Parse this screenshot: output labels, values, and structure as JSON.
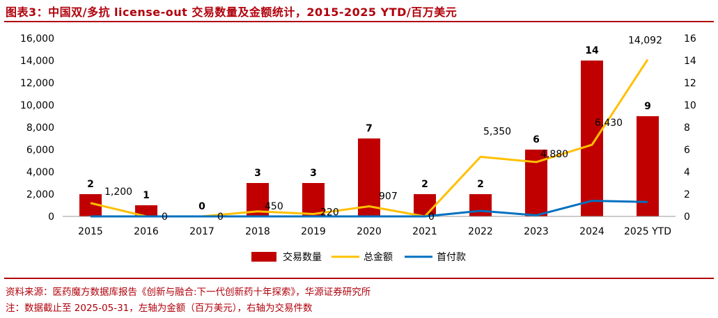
{
  "title": "图表3：中国双/多抗 license-out 交易数量及金额统计，2015-2025 YTD/百万美元",
  "source_note": "资料来源：医药魔方数据库报告《创新与融合:下一代创新药十年探索》，华源证券研究所",
  "footnote": "注：数据截止至 2025-05-31，左轴为金额（百万美元），右轴为交易件数",
  "colors": {
    "bar": "#c00000",
    "total": "#ffc000",
    "upfront": "#0070c0",
    "accent": "#b0000b"
  },
  "chart_data": {
    "type": "bar",
    "categories": [
      "2015",
      "2016",
      "2017",
      "2018",
      "2019",
      "2020",
      "2021",
      "2022",
      "2023",
      "2024",
      "2025 YTD"
    ],
    "left_axis": {
      "ylim": [
        0,
        16000
      ],
      "ticks": [
        "0",
        "2,000",
        "4,000",
        "6,000",
        "8,000",
        "10,000",
        "12,000",
        "14,000",
        "16,000"
      ]
    },
    "right_axis": {
      "ylim": [
        0,
        16
      ],
      "ticks": [
        "0",
        "2",
        "4",
        "6",
        "8",
        "10",
        "12",
        "14",
        "16"
      ]
    },
    "series": [
      {
        "name": "交易数量",
        "type": "bar",
        "axis": "right",
        "values": [
          2,
          1,
          0,
          3,
          3,
          7,
          2,
          2,
          6,
          14,
          9
        ],
        "labels": [
          "2",
          "1",
          "0",
          "3",
          "3",
          "7",
          "2",
          "2",
          "6",
          "14",
          "9"
        ]
      },
      {
        "name": "总金额",
        "type": "line",
        "axis": "left",
        "values": [
          1200,
          0,
          0,
          450,
          220,
          907,
          0,
          5350,
          4880,
          6430,
          14092
        ],
        "labels": [
          "1,200",
          "0",
          "0",
          "450",
          "220",
          "907",
          "0",
          "5,350",
          "4,880",
          "6,430",
          "14,092"
        ]
      },
      {
        "name": "首付款",
        "type": "line",
        "axis": "left",
        "values": [
          0,
          0,
          0,
          0,
          0,
          0,
          0,
          500,
          100,
          1400,
          1300
        ]
      }
    ],
    "grid": false,
    "legend_position": "bottom"
  }
}
